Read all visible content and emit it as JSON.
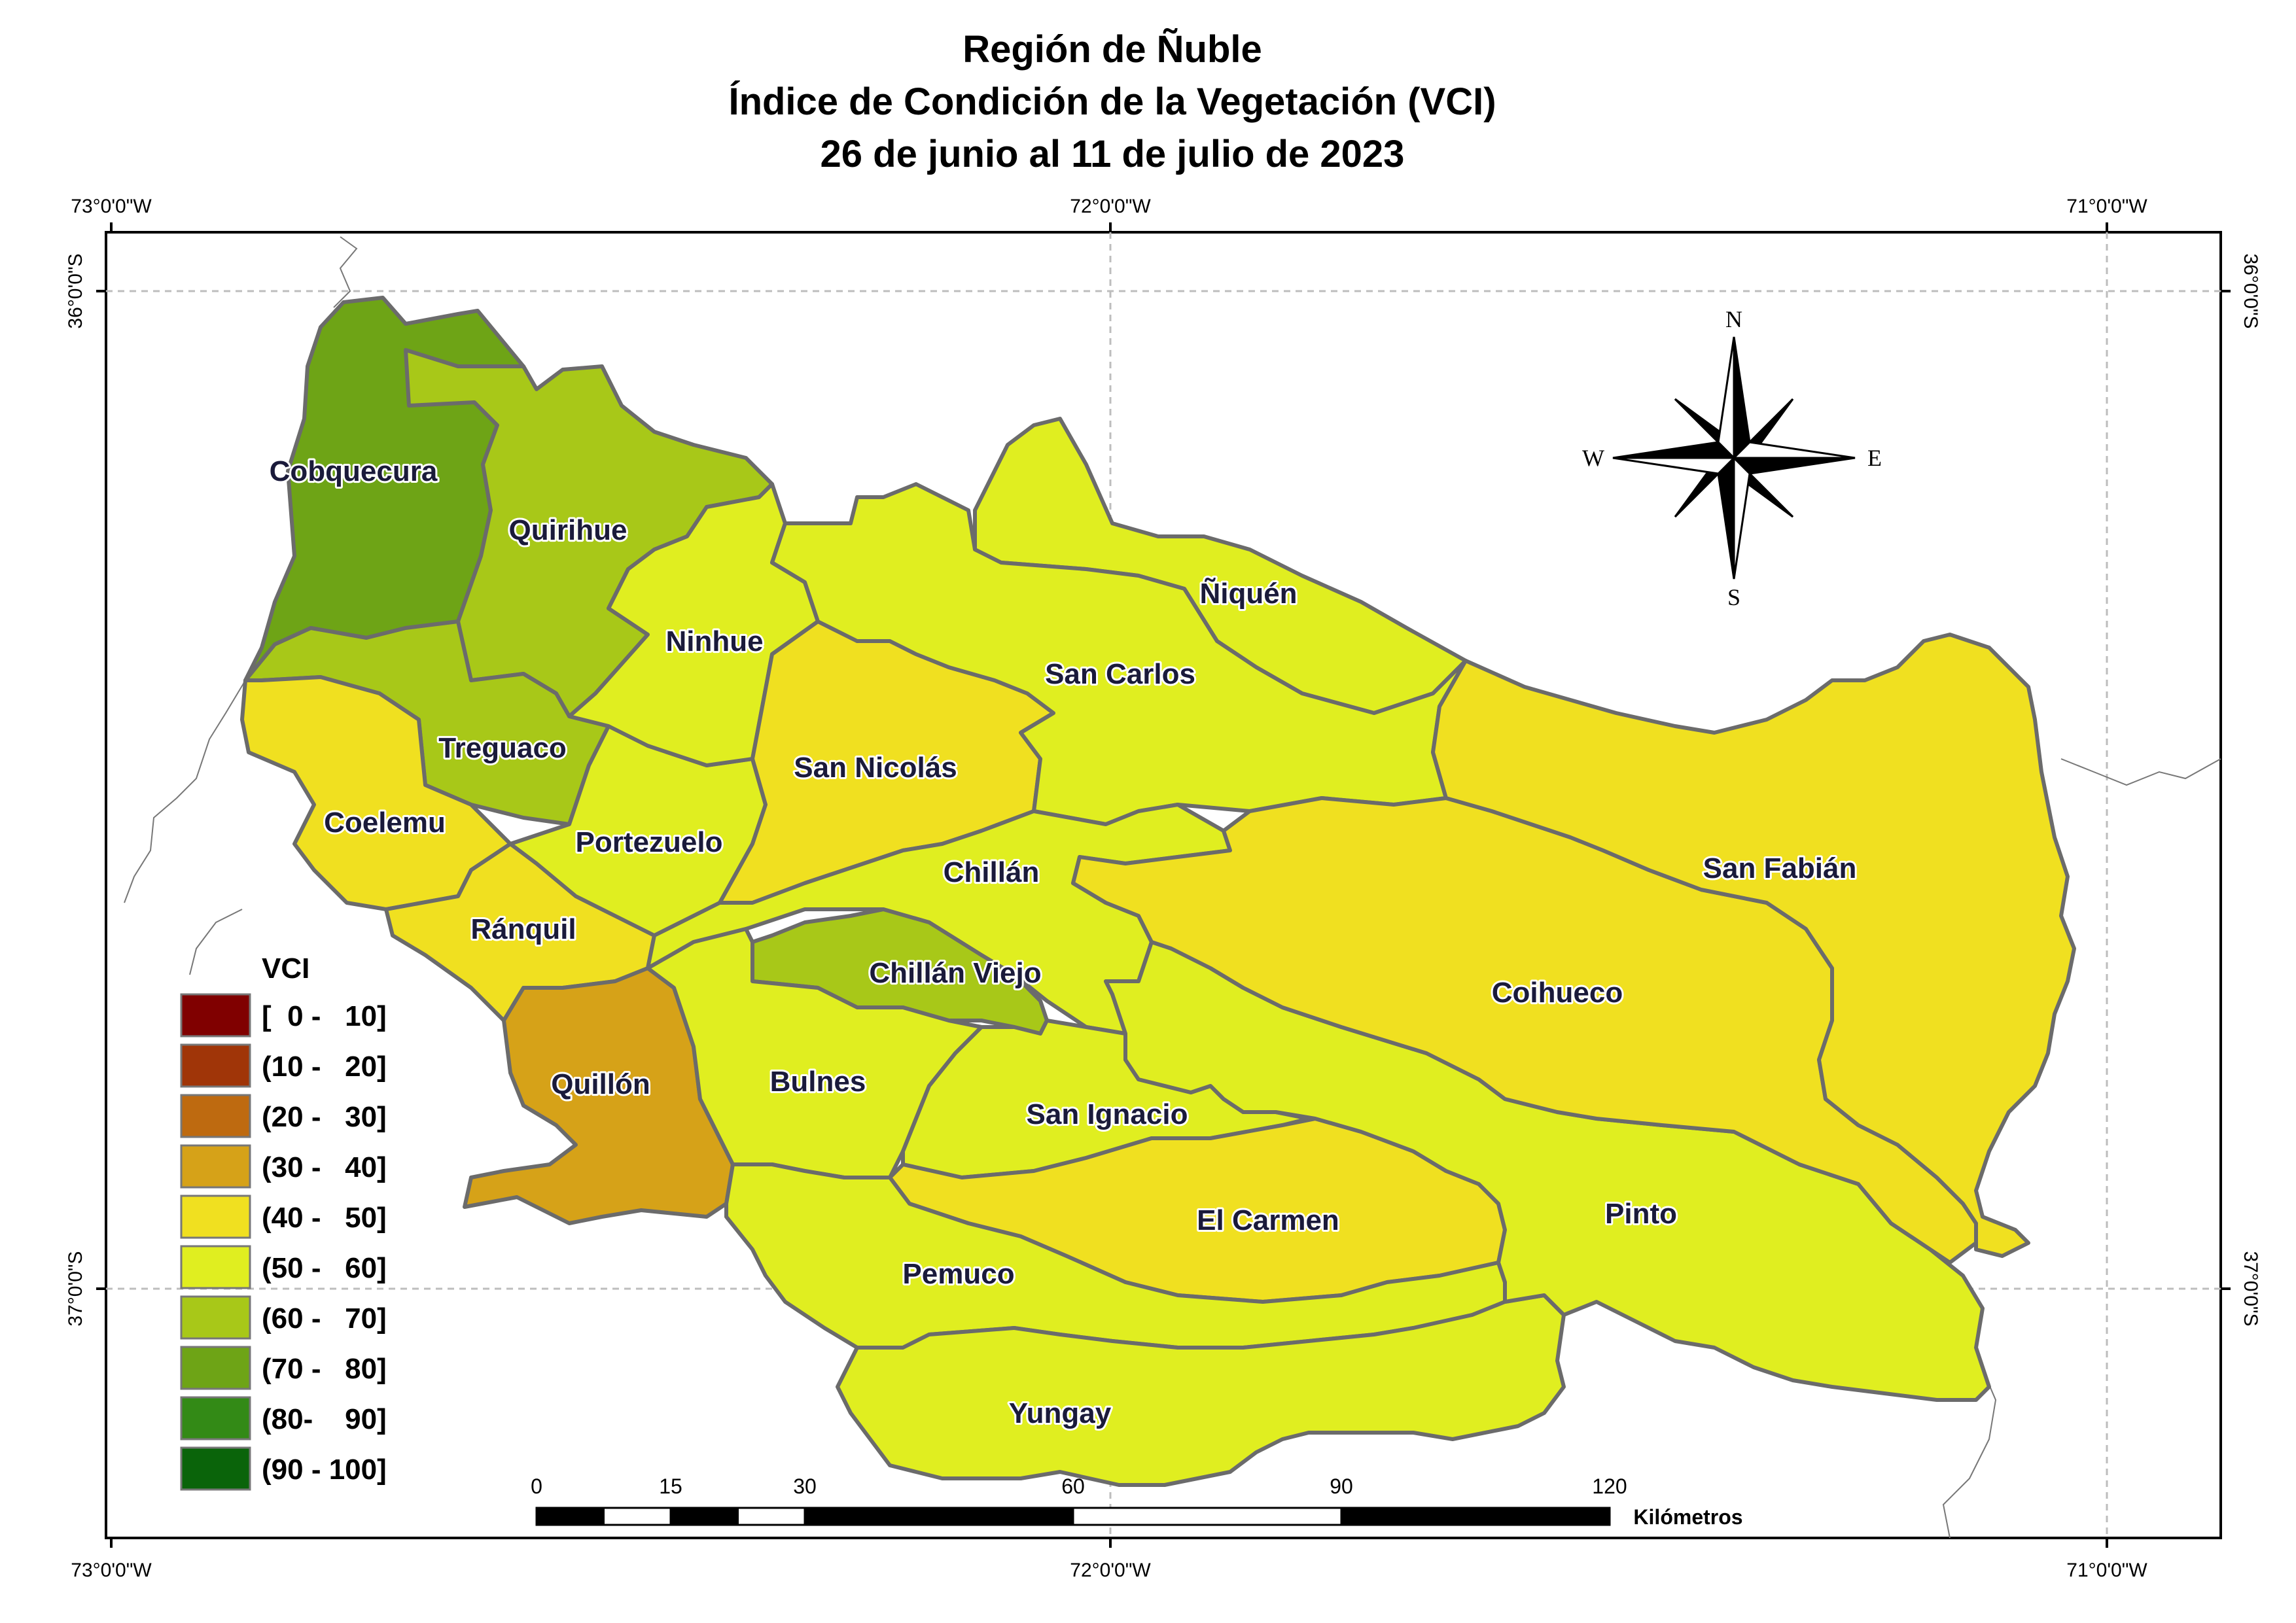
{
  "title": {
    "line1": "Región de Ñuble",
    "line2": "Índice de Condición de la Vegetación (VCI)",
    "line3": "26 de junio al 11 de julio de 2023"
  },
  "coordinates": {
    "lon_w": "73°0'0\"W",
    "lon_c": "72°0'0\"W",
    "lon_e": "71°0'0\"W",
    "lat_n": "36°0'0\"S",
    "lat_s": "37°0'0\"S"
  },
  "compass": {
    "n": "N",
    "s": "S",
    "e": "E",
    "w": "W"
  },
  "legend": {
    "title": "VCI",
    "classes": [
      {
        "label": "[  0 -   10]",
        "color": "#800000"
      },
      {
        "label": "(10 -   20]",
        "color": "#a03508"
      },
      {
        "label": "(20 -   30]",
        "color": "#be6a10"
      },
      {
        "label": "(30 -   40]",
        "color": "#d6a218"
      },
      {
        "label": "(40 -   50]",
        "color": "#f0e020"
      },
      {
        "label": "(50 -   60]",
        "color": "#e0ee20"
      },
      {
        "label": "(60 -   70]",
        "color": "#a8c818"
      },
      {
        "label": "(70 -   80]",
        "color": "#6ea416"
      },
      {
        "label": "(80-    90]",
        "color": "#338a16"
      },
      {
        "label": "(90 - 100]",
        "color": "#0a640a"
      }
    ]
  },
  "scale": {
    "ticks": [
      "0",
      "15",
      "30",
      "60",
      "90",
      "120"
    ],
    "unit": "Kilómetros"
  },
  "municipalities": [
    {
      "name": "Cobquecura",
      "vci_class": 7
    },
    {
      "name": "Quirihue",
      "vci_class": 6
    },
    {
      "name": "Ninhue",
      "vci_class": 5
    },
    {
      "name": "Ñiquén",
      "vci_class": 5
    },
    {
      "name": "San Carlos",
      "vci_class": 5
    },
    {
      "name": "Treguaco",
      "vci_class": 6
    },
    {
      "name": "San Nicolás",
      "vci_class": 4
    },
    {
      "name": "Coelemu",
      "vci_class": 4
    },
    {
      "name": "Portezuelo",
      "vci_class": 5
    },
    {
      "name": "Chillán",
      "vci_class": 5
    },
    {
      "name": "San Fabián",
      "vci_class": 4
    },
    {
      "name": "Ránquil",
      "vci_class": 4
    },
    {
      "name": "Chillán Viejo",
      "vci_class": 6
    },
    {
      "name": "Coihueco",
      "vci_class": 4
    },
    {
      "name": "Quillón",
      "vci_class": 3
    },
    {
      "name": "Bulnes",
      "vci_class": 5
    },
    {
      "name": "San Ignacio",
      "vci_class": 5
    },
    {
      "name": "El Carmen",
      "vci_class": 4
    },
    {
      "name": "Pinto",
      "vci_class": 5
    },
    {
      "name": "Pemuco",
      "vci_class": 5
    },
    {
      "name": "Yungay",
      "vci_class": 5
    }
  ]
}
